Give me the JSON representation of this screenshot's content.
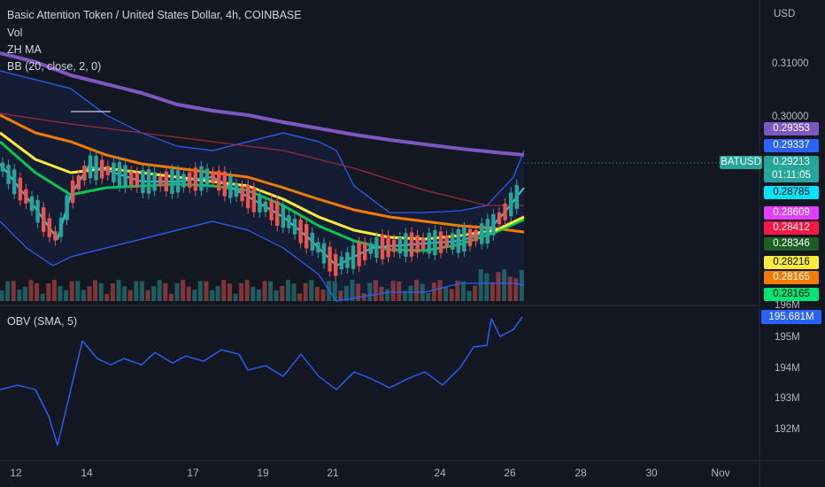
{
  "header": {
    "title": "Basic Attention Token / United States Dollar, 4h, COINBASE",
    "indicators": [
      "Vol",
      "ZH MA",
      "BB (20, close, 2, 0)"
    ]
  },
  "price_axis": {
    "currency": "USD",
    "ticks": [
      "0.31000",
      "0.30000"
    ],
    "cutoff_tick": "196M"
  },
  "price_tags": [
    {
      "value": "0.29353",
      "bg": "#7e57c2",
      "fg": "#ffffff"
    },
    {
      "value": "0.29337",
      "bg": "#2962ff",
      "fg": "#ffffff"
    },
    {
      "value": "0.28785",
      "bg": "#00e5ff",
      "fg": "#000000"
    },
    {
      "value": "0.28609",
      "bg": "#e040fb",
      "fg": "#ffffff"
    },
    {
      "value": "0.28412",
      "bg": "#ff1744",
      "fg": "#ffffff"
    },
    {
      "value": "0.28346",
      "bg": "#1b5e20",
      "fg": "#ffffff"
    },
    {
      "value": "0.28216",
      "bg": "#ffeb3b",
      "fg": "#000000"
    },
    {
      "value": "0.28165",
      "bg": "#f57c00",
      "fg": "#ffffff"
    },
    {
      "value": "0.28165",
      "bg": "#00e676",
      "fg": "#000000"
    }
  ],
  "current": {
    "symbol": "BATUSD",
    "price": "0.29213",
    "countdown": "01:11:05"
  },
  "obv": {
    "title": "OBV (SMA, 5)",
    "value": "195.681M",
    "ticks": [
      "195M",
      "194M",
      "193M",
      "192M"
    ]
  },
  "time_axis": {
    "labels": [
      "12",
      "14",
      "17",
      "19",
      "21",
      "24",
      "26",
      "28",
      "30",
      "Nov"
    ]
  },
  "colors": {
    "background": "#131722",
    "up": "#26a69a",
    "down": "#ef5350",
    "bb_line": "#2962ff",
    "obv_line": "#2962ff",
    "ma_purple": "#7e57c2",
    "ma_orange": "#f57c00",
    "ma_yellow": "#ffeb3b",
    "ma_green": "#00c853",
    "ma_teal": "#26c6da"
  }
}
